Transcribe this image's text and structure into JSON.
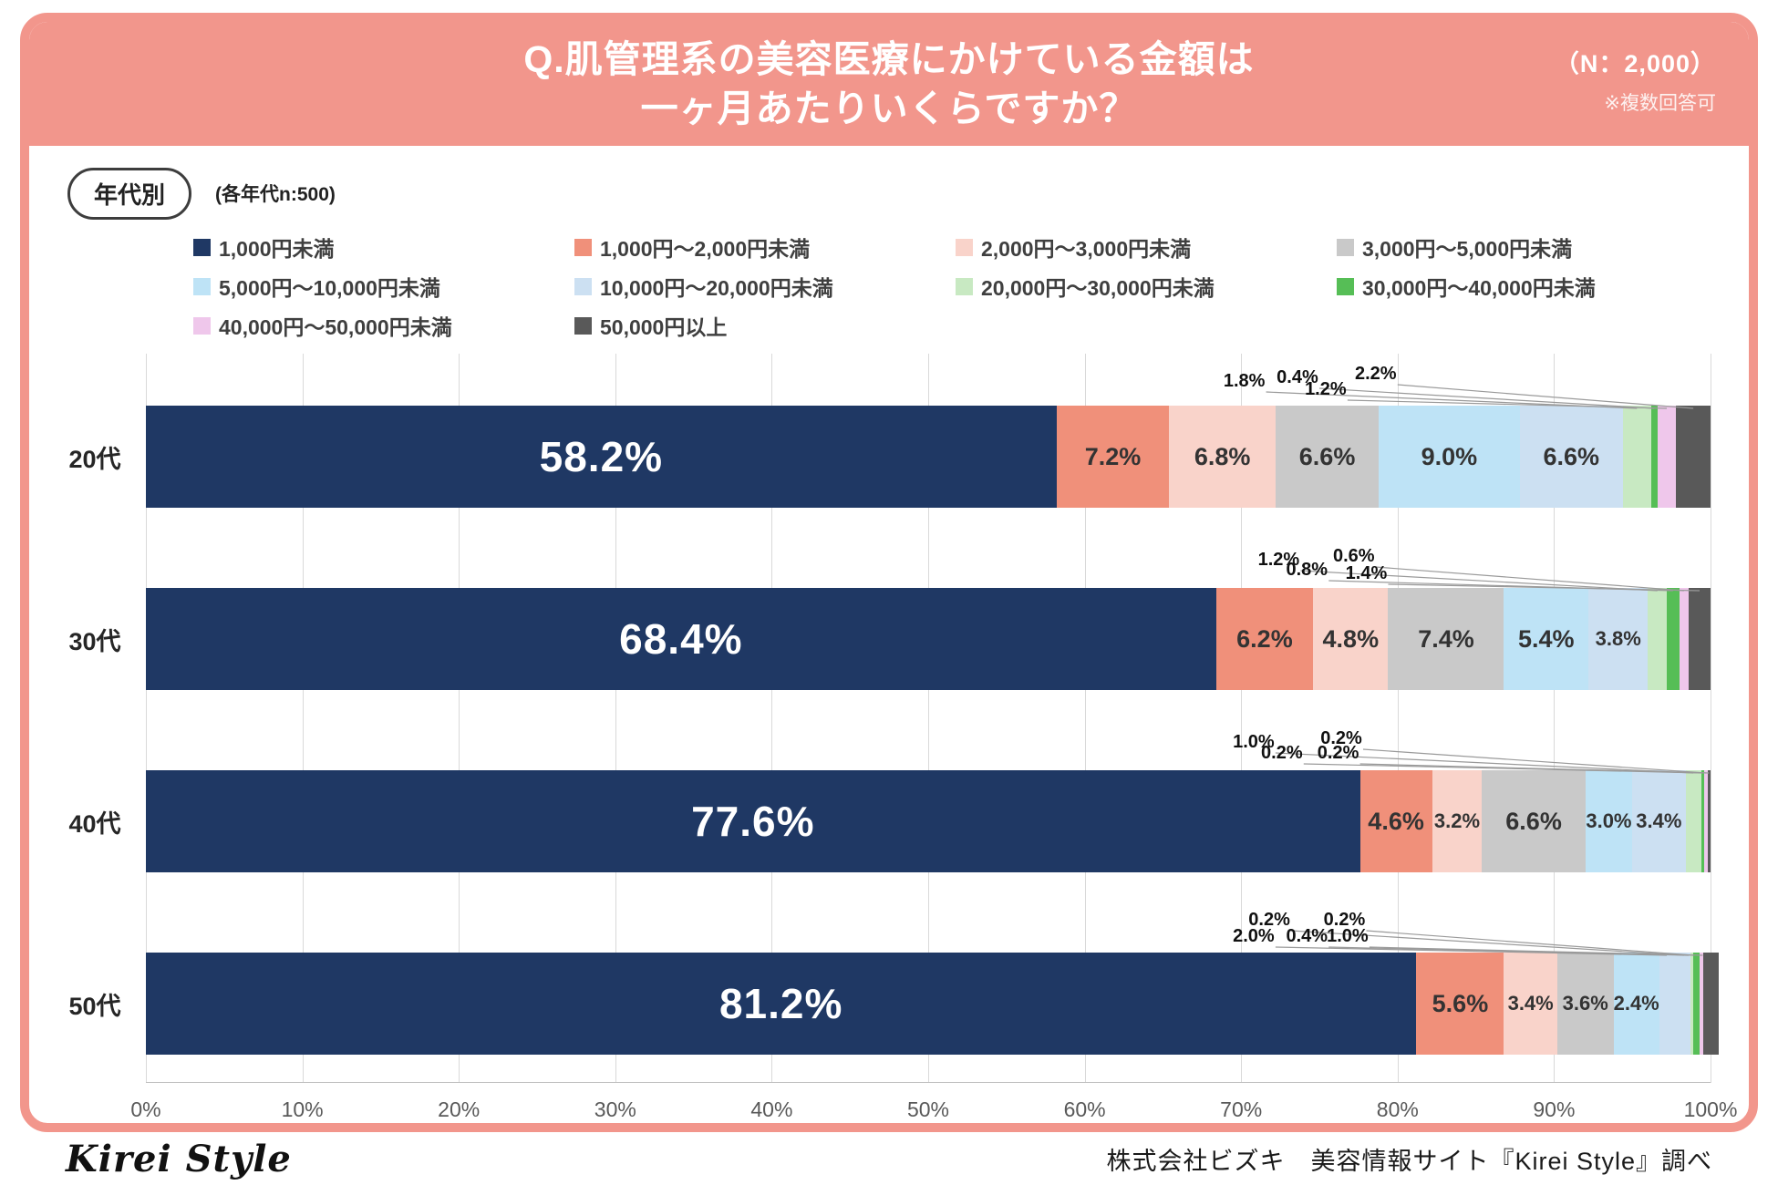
{
  "colors": {
    "coral": "#F2968C",
    "grid": "#D9D9D9",
    "axis": "#BFBFBF"
  },
  "header": {
    "title_line1": "Q.肌管理系の美容医療にかけている金額は",
    "title_line2": "一ヶ月あたりいくらですか？",
    "sample_size": "（N：2,000）",
    "note": "※複数回答可"
  },
  "controls": {
    "group_label": "年代別",
    "group_note": "(各年代n:500)"
  },
  "footer": {
    "logo": "Kirei Style",
    "credit": "株式会社ビズキ　美容情報サイト『Kirei Style』調べ"
  },
  "chart_data": {
    "type": "bar",
    "orientation": "horizontal",
    "stacked": true,
    "title": "Q.肌管理系の美容医療にかけている金額は一ヶ月あたりいくらですか？",
    "categories": [
      "20代",
      "30代",
      "40代",
      "50代"
    ],
    "x_ticks": [
      "0%",
      "10%",
      "20%",
      "30%",
      "40%",
      "50%",
      "60%",
      "70%",
      "80%",
      "90%",
      "100%"
    ],
    "xlim": [
      0,
      100
    ],
    "grid": true,
    "legend_position": "top",
    "series": [
      {
        "name": "1,000円未満",
        "color": "#1F3864",
        "values": [
          58.2,
          68.4,
          77.6,
          81.2
        ]
      },
      {
        "name": "1,000円〜2,000円未満",
        "color": "#F0907A",
        "values": [
          7.2,
          6.2,
          4.6,
          5.6
        ]
      },
      {
        "name": "2,000円〜3,000円未満",
        "color": "#F9D3CA",
        "values": [
          6.8,
          4.8,
          3.2,
          3.4
        ]
      },
      {
        "name": "3,000円〜5,000円未満",
        "color": "#C9C9C9",
        "values": [
          6.6,
          7.4,
          6.6,
          3.6
        ]
      },
      {
        "name": "5,000円〜10,000円未満",
        "color": "#BEE3F6",
        "values": [
          9.0,
          5.4,
          3.0,
          2.4
        ]
      },
      {
        "name": "10,000円〜20,000円未満",
        "color": "#CCE0F2",
        "values": [
          6.6,
          3.8,
          3.4,
          2.0
        ]
      },
      {
        "name": "20,000円〜30,000円未満",
        "color": "#C8E9C2",
        "values": [
          1.8,
          1.2,
          1.0,
          0.2
        ]
      },
      {
        "name": "30,000円〜40,000円未満",
        "color": "#56BE56",
        "values": [
          0.4,
          0.8,
          0.2,
          0.4
        ]
      },
      {
        "name": "40,000円〜50,000円未満",
        "color": "#EFC7EB",
        "values": [
          1.2,
          0.6,
          0.2,
          0.2
        ]
      },
      {
        "name": "50,000円以上",
        "color": "#595959",
        "values": [
          2.2,
          1.4,
          0.2,
          1.0
        ]
      }
    ],
    "inbar_labeled_series": [
      [
        0,
        1,
        2,
        3,
        4,
        5
      ],
      [
        0,
        1,
        2,
        3,
        4,
        5
      ],
      [
        0,
        1,
        2,
        3,
        4,
        5
      ],
      [
        0,
        1,
        2,
        3,
        4
      ]
    ],
    "callouts": [
      [
        {
          "series": 6,
          "label_x": 70.2,
          "gap": 13
        },
        {
          "series": 7,
          "label_x": 73.6,
          "gap": 17
        },
        {
          "series": 8,
          "label_x": 75.4,
          "gap": 4
        },
        {
          "series": 9,
          "label_x": 78.6,
          "gap": 21
        }
      ],
      [
        {
          "series": 6,
          "label_x": 72.4,
          "gap": 17
        },
        {
          "series": 7,
          "label_x": 74.2,
          "gap": 6
        },
        {
          "series": 8,
          "label_x": 77.2,
          "gap": 21
        },
        {
          "series": 9,
          "label_x": 78.0,
          "gap": 2
        }
      ],
      [
        {
          "series": 6,
          "label_x": 70.8,
          "gap": 17
        },
        {
          "series": 7,
          "label_x": 72.6,
          "gap": 5
        },
        {
          "series": 8,
          "label_x": 76.4,
          "gap": 21
        },
        {
          "series": 9,
          "label_x": 76.2,
          "gap": 5
        }
      ],
      [
        {
          "series": 5,
          "label_x": 70.8,
          "gap": 4
        },
        {
          "series": 6,
          "label_x": 71.8,
          "gap": 22
        },
        {
          "series": 7,
          "label_x": 74.2,
          "gap": 4
        },
        {
          "series": 8,
          "label_x": 76.6,
          "gap": 22
        },
        {
          "series": 9,
          "label_x": 76.8,
          "gap": 4
        }
      ]
    ]
  }
}
